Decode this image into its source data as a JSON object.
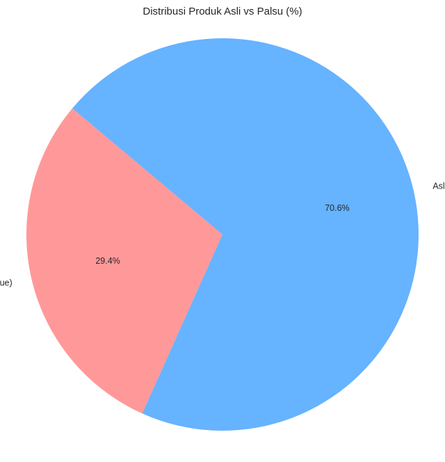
{
  "chart_data": {
    "type": "pie",
    "title": "Distribusi Produk Asli vs Palsu (%)",
    "slices": [
      {
        "label": "Palsu (True)",
        "value": 29.4,
        "pct_label": "29.4%",
        "color": "#ff9999"
      },
      {
        "label": "Asli (False)",
        "value": 70.6,
        "pct_label": "70.6%",
        "color": "#66b3ff"
      }
    ],
    "start_angle_deg": 140,
    "direction": "counterclockwise",
    "legend": "none",
    "grid": false
  }
}
